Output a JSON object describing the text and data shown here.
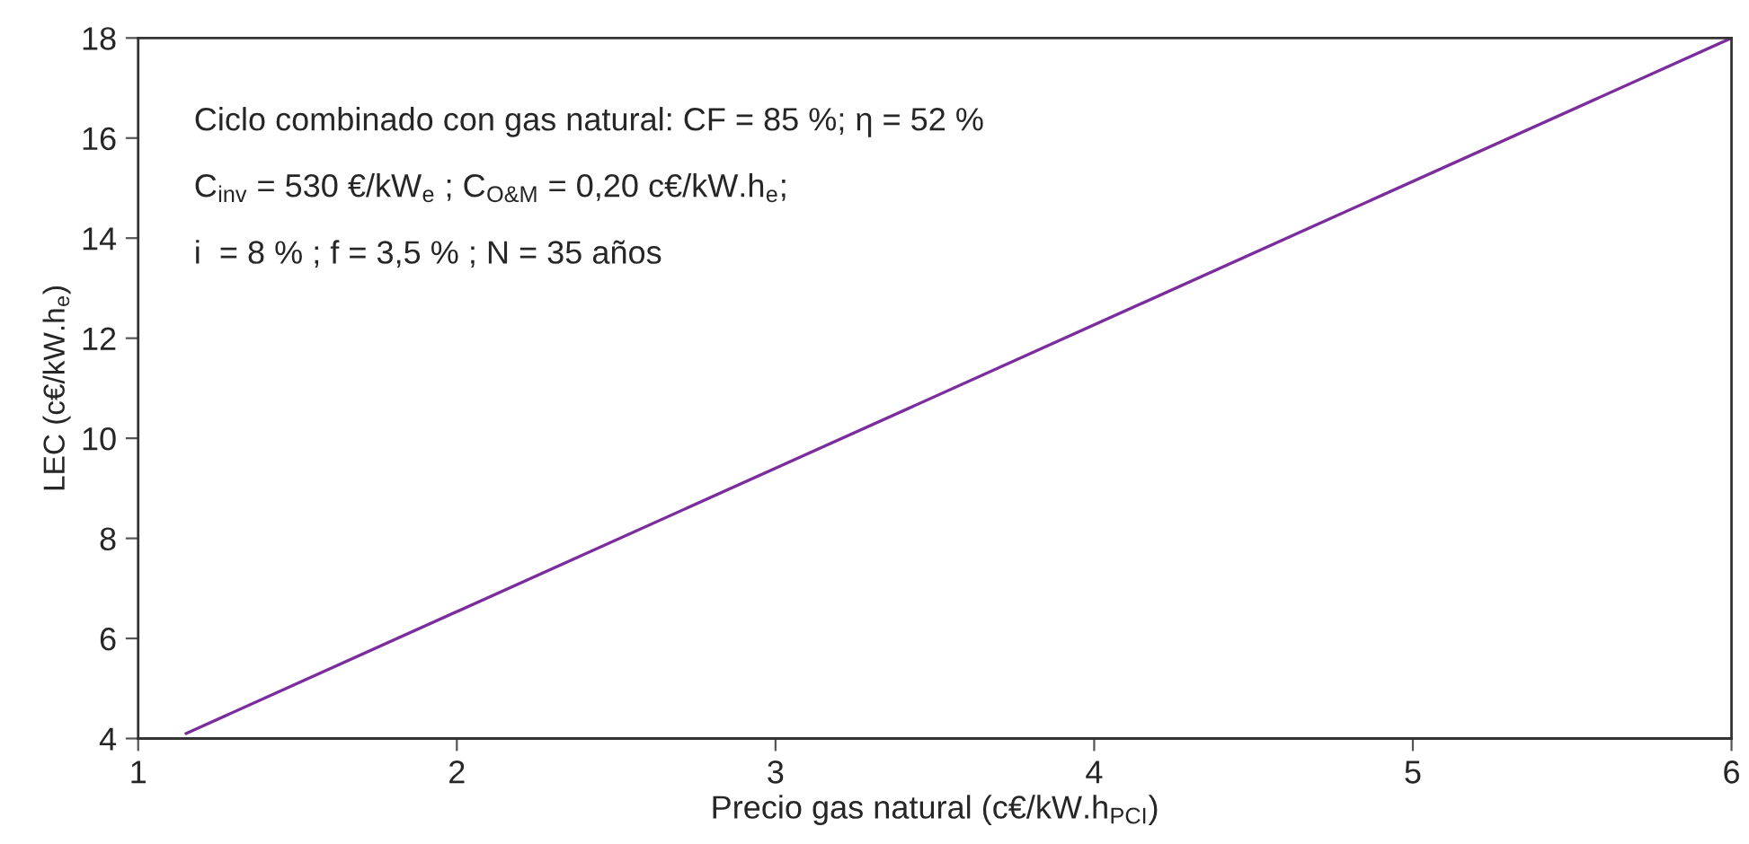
{
  "chart_data": {
    "type": "line",
    "xlabel": "Precio gas natural (c€/kW.h$_{PCI}$)",
    "ylabel": "LEC (c€/kW.h$_{e}$)",
    "x": [
      1.15,
      6
    ],
    "series": [
      {
        "color": "#7b2d9e",
        "values": [
          4.1,
          18
        ]
      }
    ],
    "xlim": [
      1,
      6
    ],
    "ylim": [
      4,
      18
    ],
    "xticks": [
      1,
      2,
      3,
      4,
      5,
      6
    ],
    "yticks": [
      4,
      6,
      8,
      10,
      12,
      14,
      16,
      18
    ],
    "grid": false,
    "annotations": [
      "Ciclo combinado con gas natural: CF = 85 %; η = 52 %",
      "C$_{inv}$ = 530 €/kW$_{e}$ ; C$_{O&M}$ = 0,20 c€/kW.h$_{e}$;",
      "i  = 8 % ; f = 3,5 % ; N = 35 años"
    ]
  }
}
